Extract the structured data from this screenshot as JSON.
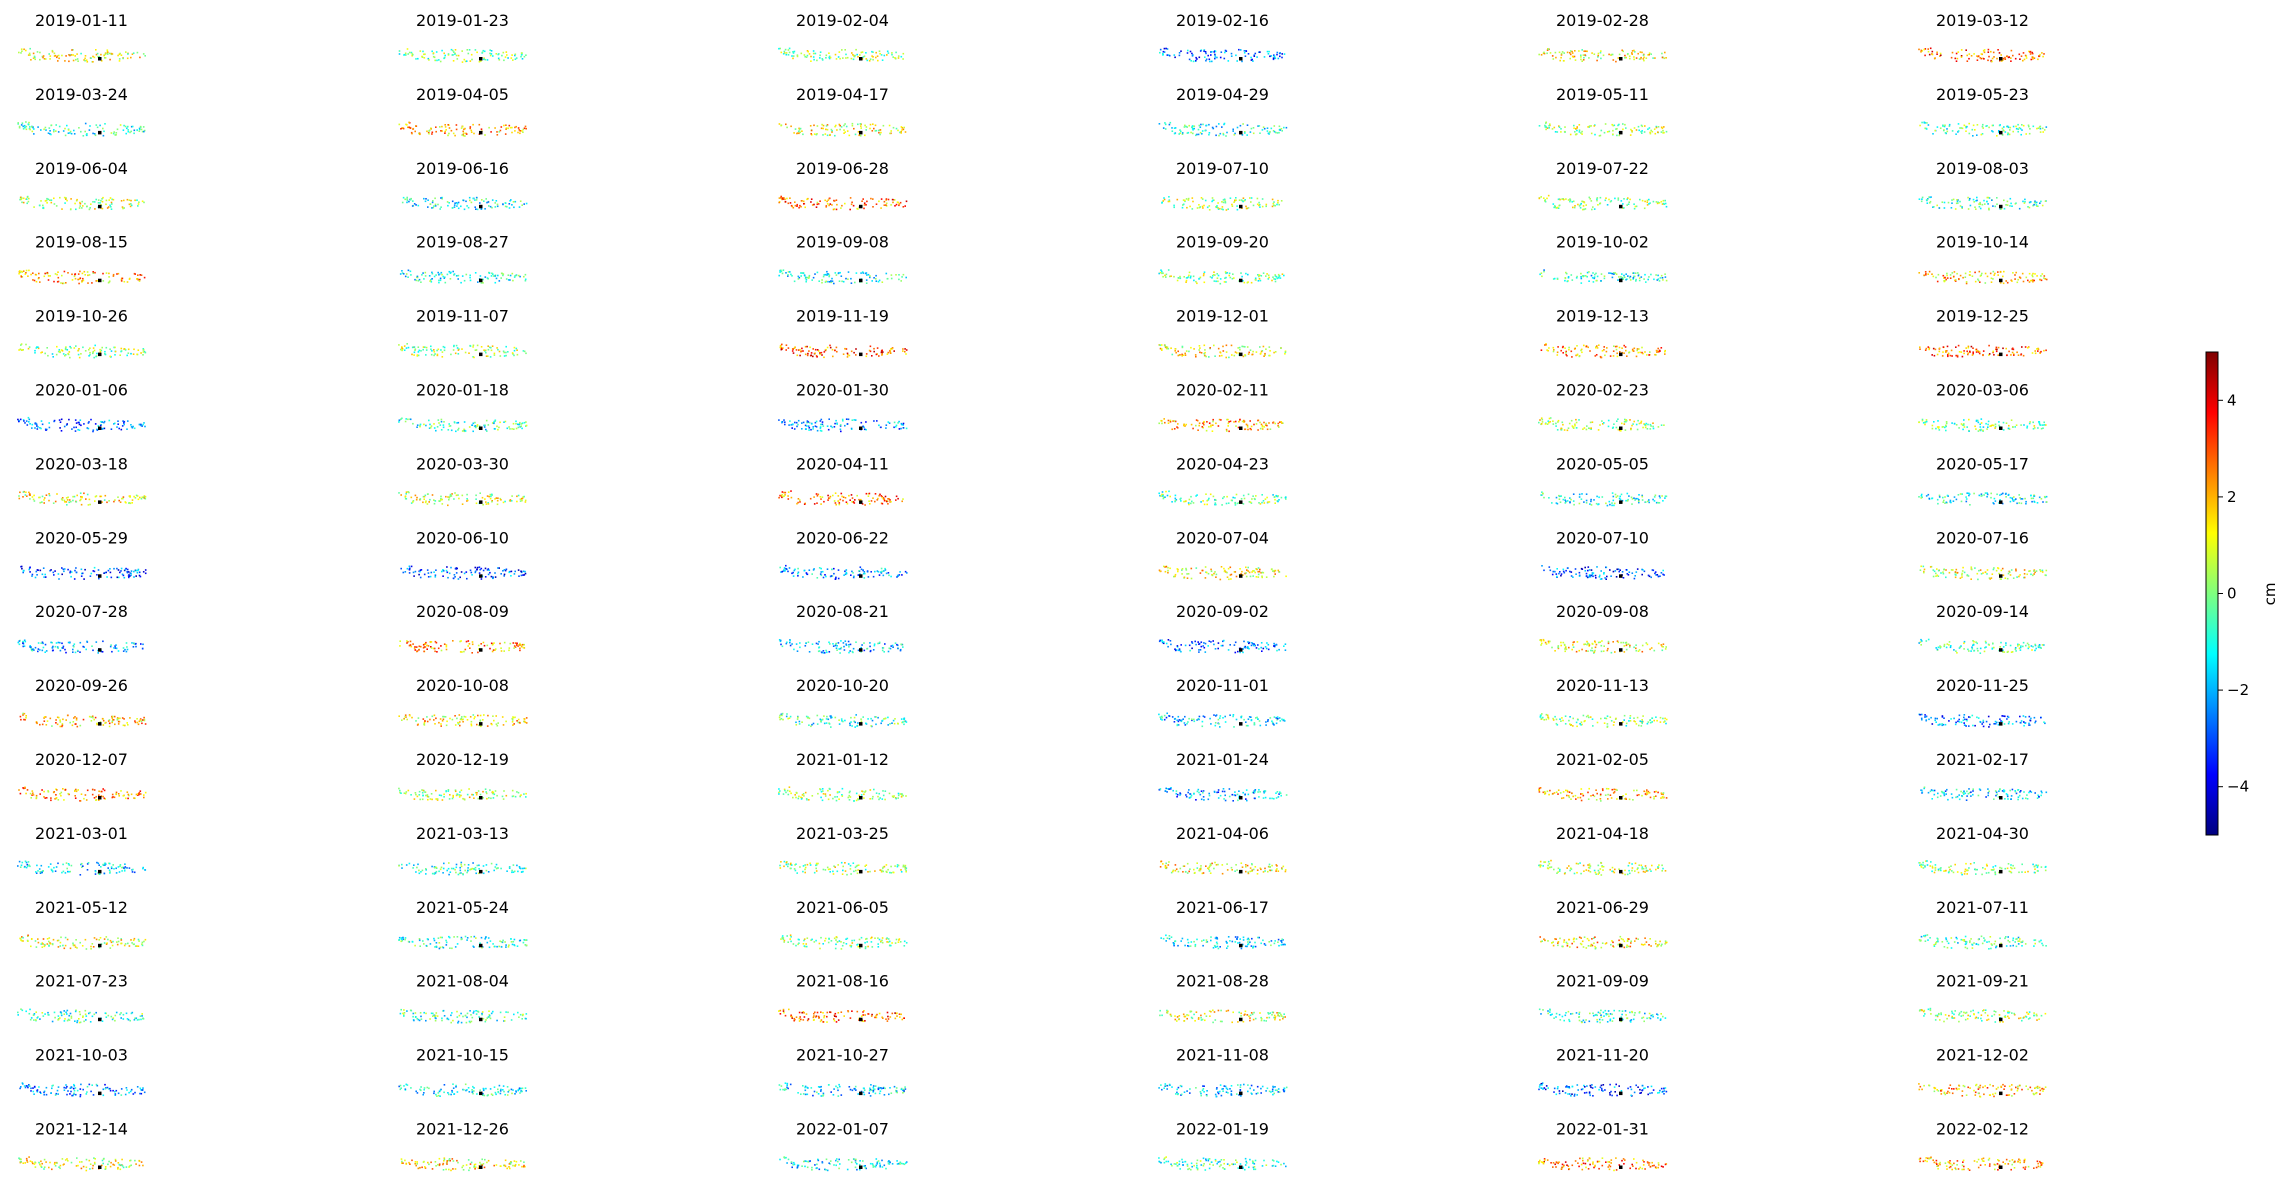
{
  "chart_data": {
    "type": "scatter",
    "panel_dates": [
      "2019-01-11",
      "2019-01-23",
      "2019-02-04",
      "2019-02-16",
      "2019-02-28",
      "2019-03-12",
      "2019-03-24",
      "2019-04-05",
      "2019-04-17",
      "2019-04-29",
      "2019-05-11",
      "2019-05-23",
      "2019-06-04",
      "2019-06-16",
      "2019-06-28",
      "2019-07-10",
      "2019-07-22",
      "2019-08-03",
      "2019-08-15",
      "2019-08-27",
      "2019-09-08",
      "2019-09-20",
      "2019-10-02",
      "2019-10-14",
      "2019-10-26",
      "2019-11-07",
      "2019-11-19",
      "2019-12-01",
      "2019-12-13",
      "2019-12-25",
      "2020-01-06",
      "2020-01-18",
      "2020-01-30",
      "2020-02-11",
      "2020-02-23",
      "2020-03-06",
      "2020-03-18",
      "2020-03-30",
      "2020-04-11",
      "2020-04-23",
      "2020-05-05",
      "2020-05-17",
      "2020-05-29",
      "2020-06-10",
      "2020-06-22",
      "2020-07-04",
      "2020-07-10",
      "2020-07-16",
      "2020-07-28",
      "2020-08-09",
      "2020-08-21",
      "2020-09-02",
      "2020-09-08",
      "2020-09-14",
      "2020-09-26",
      "2020-10-08",
      "2020-10-20",
      "2020-11-01",
      "2020-11-13",
      "2020-11-25",
      "2020-12-07",
      "2020-12-19",
      "2021-01-12",
      "2021-01-24",
      "2021-02-05",
      "2021-02-17",
      "2021-03-01",
      "2021-03-13",
      "2021-03-25",
      "2021-04-06",
      "2021-04-18",
      "2021-04-30",
      "2021-05-12",
      "2021-05-24",
      "2021-06-05",
      "2021-06-17",
      "2021-06-29",
      "2021-07-11",
      "2021-07-23",
      "2021-08-04",
      "2021-08-16",
      "2021-08-28",
      "2021-09-09",
      "2021-09-21",
      "2021-10-03",
      "2021-10-15",
      "2021-10-27",
      "2021-11-08",
      "2021-11-20",
      "2021-12-02",
      "2021-12-14",
      "2021-12-26",
      "2022-01-07",
      "2022-01-19",
      "2022-01-31",
      "2022-02-12"
    ],
    "grid_columns": 6,
    "grid_rows": 16,
    "grid": false,
    "colorbar": {
      "label": "cm",
      "vmin": -5,
      "vmax": 5,
      "ticks": [
        -4,
        -2,
        0,
        2,
        4
      ],
      "tick_labels": [
        "−4",
        "−2",
        "0",
        "2",
        "4"
      ],
      "colormap": "jet",
      "colormap_stops": [
        "#00007f",
        "#0000ff",
        "#007fff",
        "#00ffff",
        "#7fff7f",
        "#ffff00",
        "#ff7f00",
        "#ff0000",
        "#7f0000"
      ]
    },
    "reference_point_color": "#000000"
  }
}
